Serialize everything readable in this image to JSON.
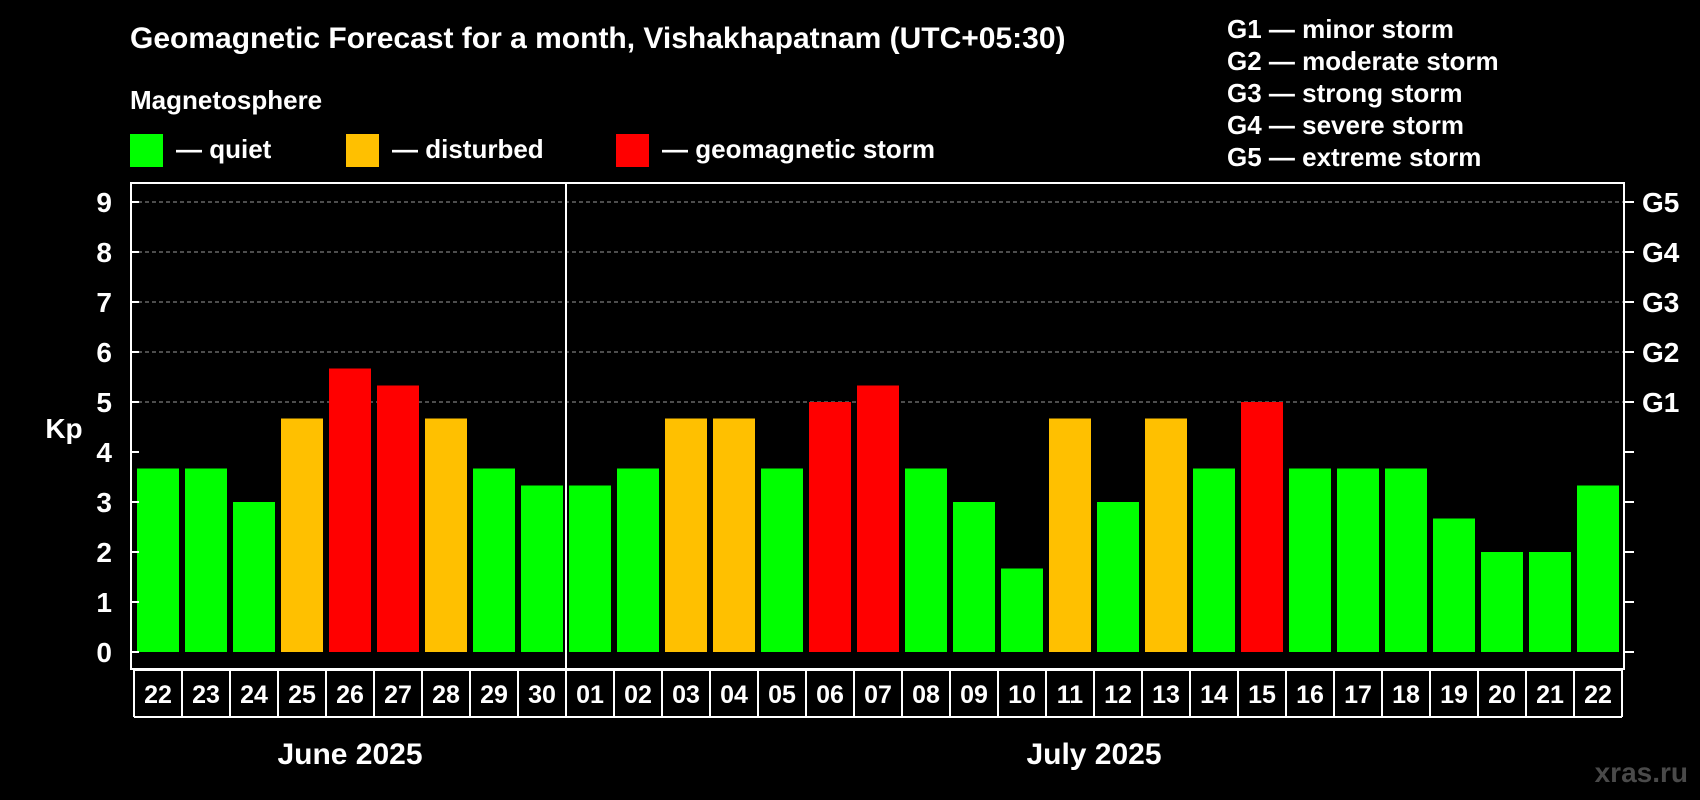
{
  "colors": {
    "quiet": "#00ff00",
    "disturbed": "#ffc000",
    "storm": "#ff0000",
    "background": "#000000",
    "foreground": "#ffffff"
  },
  "header": {
    "title": "Geomagnetic Forecast for a month, Vishakhapatnam (UTC+05:30)",
    "legend_title": "Magnetosphere",
    "legend": [
      {
        "key": "quiet",
        "label": "— quiet"
      },
      {
        "key": "disturbed",
        "label": "— disturbed"
      },
      {
        "key": "storm",
        "label": "— geomagnetic storm"
      }
    ],
    "g_scale": [
      "G1 — minor storm",
      "G2 — moderate storm",
      "G3 — strong storm",
      "G4 — severe storm",
      "G5 — extreme storm"
    ]
  },
  "watermark": "xras.ru",
  "chart_data": {
    "type": "bar",
    "ylabel": "Kp",
    "ylim": [
      0,
      9
    ],
    "yticks": [
      "0",
      "1",
      "2",
      "3",
      "4",
      "5",
      "6",
      "7",
      "8",
      "9"
    ],
    "right_ticks": [
      {
        "kp": 5,
        "label": "G1"
      },
      {
        "kp": 6,
        "label": "G2"
      },
      {
        "kp": 7,
        "label": "G3"
      },
      {
        "kp": 8,
        "label": "G4"
      },
      {
        "kp": 9,
        "label": "G5"
      }
    ],
    "grid": "dashed horizontal at Kp 5–9",
    "categories": [
      "22",
      "23",
      "24",
      "25",
      "26",
      "27",
      "28",
      "29",
      "30",
      "01",
      "02",
      "03",
      "04",
      "05",
      "06",
      "07",
      "08",
      "09",
      "10",
      "11",
      "12",
      "13",
      "14",
      "15",
      "16",
      "17",
      "18",
      "19",
      "20",
      "21",
      "22"
    ],
    "values": [
      3.67,
      3.67,
      3.0,
      4.67,
      5.67,
      5.33,
      4.67,
      3.67,
      3.33,
      3.33,
      3.67,
      4.67,
      4.67,
      3.67,
      5.0,
      5.33,
      3.67,
      3.0,
      1.67,
      4.67,
      3.0,
      4.67,
      3.67,
      5.0,
      3.67,
      3.67,
      3.67,
      2.67,
      2.0,
      2.0,
      3.33
    ],
    "levels": [
      "quiet",
      "quiet",
      "quiet",
      "disturbed",
      "storm",
      "storm",
      "disturbed",
      "quiet",
      "quiet",
      "quiet",
      "quiet",
      "disturbed",
      "disturbed",
      "quiet",
      "storm",
      "storm",
      "quiet",
      "quiet",
      "quiet",
      "disturbed",
      "quiet",
      "disturbed",
      "quiet",
      "storm",
      "quiet",
      "quiet",
      "quiet",
      "quiet",
      "quiet",
      "quiet",
      "quiet"
    ],
    "months": [
      {
        "label": "June 2025",
        "count": 9
      },
      {
        "label": "July 2025",
        "count": 22
      }
    ]
  }
}
